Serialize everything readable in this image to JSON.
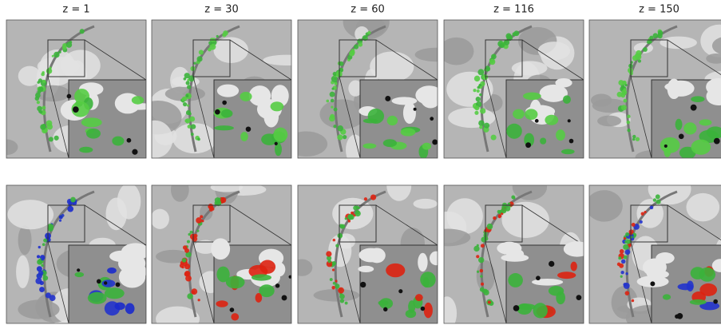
{
  "columns": [
    "z = 1",
    "z = 30",
    "z = 60",
    "z = 116",
    "z = 150"
  ]
}
